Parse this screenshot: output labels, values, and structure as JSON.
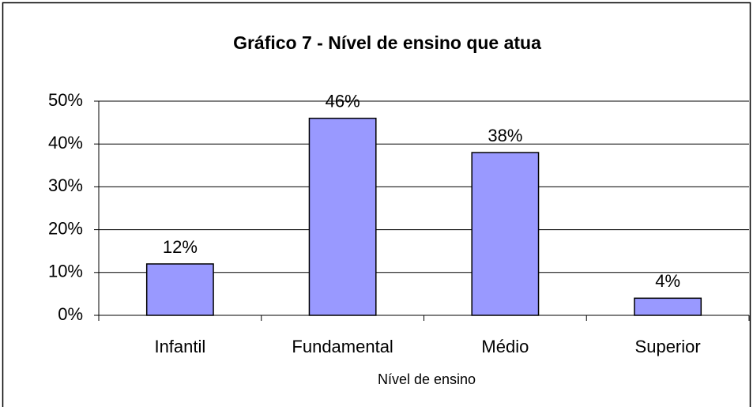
{
  "chart_data": {
    "type": "bar",
    "title": "Gráfico 7 - Nível de ensino que atua",
    "x_label": "Nível de ensino",
    "categories": [
      "Infantil",
      "Fundamental",
      "Médio",
      "Superior"
    ],
    "values": [
      12,
      46,
      38,
      4
    ],
    "value_labels": [
      "12%",
      "46%",
      "38%",
      "4%"
    ],
    "color": "#9999ff",
    "ylim": [
      0,
      50
    ],
    "yticks": [
      {
        "value": 0,
        "label": "0%"
      },
      {
        "value": 10,
        "label": "10%"
      },
      {
        "value": 20,
        "label": "20%"
      },
      {
        "value": 30,
        "label": "30%"
      },
      {
        "value": 40,
        "label": "40%"
      },
      {
        "value": 50,
        "label": "50%"
      }
    ],
    "grid": true
  }
}
